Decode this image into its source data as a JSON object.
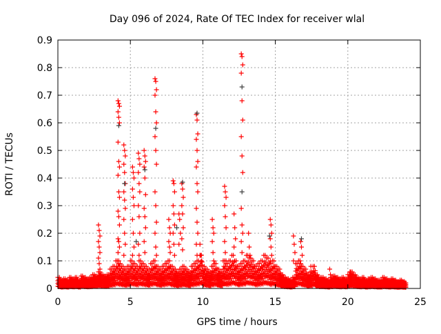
{
  "chart_data": {
    "type": "scatter",
    "title": "Day 096 of 2024, Rate Of TEC Index for receiver wlal",
    "xlabel": "GPS time / hours",
    "ylabel": "ROTI / TECUs",
    "xlim": [
      0,
      25
    ],
    "ylim": [
      0,
      0.9
    ],
    "xticks": [
      "0",
      "5",
      "10",
      "15",
      "20",
      "25"
    ],
    "yticks": [
      "0",
      "0.1",
      "0.2",
      "0.3",
      "0.4",
      "0.5",
      "0.6",
      "0.7",
      "0.8",
      "0.9"
    ],
    "grid": true,
    "marker": "+",
    "colors": {
      "primary": "#ff0000",
      "secondary": "#404040",
      "grid": "#a0a0a0"
    },
    "baseline": {
      "x_start": 0,
      "x_step": 0.2,
      "y": [
        0.04,
        0.03,
        0.035,
        0.03,
        0.04,
        0.035,
        0.04,
        0.03,
        0.045,
        0.04,
        0.035,
        0.04,
        0.05,
        0.045,
        0.06,
        0.05,
        0.045,
        0.05,
        0.07,
        0.08,
        0.1,
        0.09,
        0.08,
        0.07,
        0.08,
        0.1,
        0.09,
        0.08,
        0.1,
        0.09,
        0.08,
        0.07,
        0.09,
        0.1,
        0.08,
        0.07,
        0.08,
        0.09,
        0.1,
        0.08,
        0.07,
        0.06,
        0.07,
        0.08,
        0.07,
        0.06,
        0.08,
        0.09,
        0.1,
        0.12,
        0.08,
        0.07,
        0.06,
        0.08,
        0.09,
        0.07,
        0.06,
        0.1,
        0.09,
        0.1,
        0.12,
        0.1,
        0.08,
        0.09,
        0.1,
        0.12,
        0.11,
        0.1,
        0.08,
        0.09,
        0.1,
        0.12,
        0.11,
        0.09,
        0.1,
        0.08,
        0.07,
        0.05,
        0.04,
        0.035,
        0.03,
        0.04,
        0.09,
        0.1,
        0.08,
        0.07,
        0.05,
        0.06,
        0.08,
        0.05,
        0.04,
        0.04,
        0.035,
        0.03,
        0.04,
        0.045,
        0.04,
        0.035,
        0.04,
        0.035,
        0.05,
        0.06,
        0.05,
        0.04,
        0.035,
        0.04,
        0.03,
        0.035,
        0.04,
        0.035,
        0.03,
        0.03,
        0.04,
        0.035,
        0.03,
        0.035,
        0.03,
        0.025,
        0.03,
        0.025,
        0.02
      ]
    },
    "spikes": [
      {
        "x": 2.85,
        "y": [
          0.23,
          0.21,
          0.19,
          0.17,
          0.15,
          0.13,
          0.11,
          0.09,
          0.07
        ]
      },
      {
        "x": 4.2,
        "y": [
          0.68,
          0.67,
          0.66,
          0.64,
          0.62,
          0.6,
          0.53,
          0.46,
          0.44,
          0.41,
          0.35,
          0.33,
          0.28,
          0.26,
          0.23,
          0.18,
          0.17,
          0.15,
          0.13,
          0.1,
          0.08
        ]
      },
      {
        "x": 4.6,
        "y": [
          0.52,
          0.5,
          0.48,
          0.45,
          0.42,
          0.38,
          0.35,
          0.32,
          0.29,
          0.25,
          0.2,
          0.16,
          0.12
        ]
      },
      {
        "x": 5.2,
        "y": [
          0.44,
          0.42,
          0.4,
          0.36,
          0.33,
          0.3,
          0.25,
          0.2,
          0.15,
          0.12
        ]
      },
      {
        "x": 5.6,
        "y": [
          0.49,
          0.47,
          0.45,
          0.42,
          0.38,
          0.35,
          0.3,
          0.26,
          0.2,
          0.16,
          0.12
        ]
      },
      {
        "x": 6.0,
        "y": [
          0.5,
          0.48,
          0.46,
          0.44,
          0.4,
          0.34,
          0.29,
          0.26,
          0.22,
          0.17,
          0.13
        ]
      },
      {
        "x": 6.75,
        "y": [
          0.76,
          0.75,
          0.72,
          0.7,
          0.64,
          0.6,
          0.55,
          0.5,
          0.45,
          0.35,
          0.3,
          0.24,
          0.2,
          0.15,
          0.12
        ]
      },
      {
        "x": 7.7,
        "y": [
          0.25,
          0.22,
          0.2,
          0.17,
          0.15,
          0.13
        ]
      },
      {
        "x": 8.0,
        "y": [
          0.39,
          0.38,
          0.35,
          0.3,
          0.27,
          0.23,
          0.2,
          0.16,
          0.12
        ]
      },
      {
        "x": 8.4,
        "y": [
          0.27,
          0.25,
          0.2,
          0.16
        ]
      },
      {
        "x": 8.6,
        "y": [
          0.38,
          0.36,
          0.33,
          0.3,
          0.27,
          0.22,
          0.18,
          0.14
        ]
      },
      {
        "x": 9.6,
        "y": [
          0.63,
          0.61,
          0.56,
          0.54,
          0.5,
          0.46,
          0.44,
          0.38,
          0.35,
          0.29,
          0.24,
          0.2,
          0.16,
          0.12
        ]
      },
      {
        "x": 9.85,
        "y": [
          0.16,
          0.12,
          0.1
        ]
      },
      {
        "x": 10.7,
        "y": [
          0.25,
          0.22,
          0.2,
          0.17,
          0.13,
          0.1
        ]
      },
      {
        "x": 11.55,
        "y": [
          0.37,
          0.35,
          0.33,
          0.3,
          0.26,
          0.22,
          0.17,
          0.13,
          0.1
        ]
      },
      {
        "x": 12.2,
        "y": [
          0.27,
          0.22,
          0.18,
          0.15
        ]
      },
      {
        "x": 12.7,
        "y": [
          0.85,
          0.84,
          0.81,
          0.78,
          0.68,
          0.61,
          0.55,
          0.48,
          0.42,
          0.29,
          0.23,
          0.2,
          0.17,
          0.13
        ]
      },
      {
        "x": 13.2,
        "y": [
          0.2,
          0.15,
          0.12
        ]
      },
      {
        "x": 14.7,
        "y": [
          0.25,
          0.23,
          0.2,
          0.18,
          0.15,
          0.12,
          0.1
        ]
      },
      {
        "x": 16.3,
        "y": [
          0.19,
          0.16,
          0.13,
          0.1
        ]
      },
      {
        "x": 16.8,
        "y": [
          0.17,
          0.15,
          0.12,
          0.09
        ]
      },
      {
        "x": 17.5,
        "y": [
          0.08,
          0.06
        ]
      },
      {
        "x": 18.8,
        "y": [
          0.07,
          0.05
        ]
      },
      {
        "x": 20.2,
        "y": [
          0.06
        ]
      }
    ],
    "secondary_points": [
      [
        4.2,
        0.59
      ],
      [
        9.6,
        0.635
      ],
      [
        12.7,
        0.73
      ],
      [
        12.7,
        0.35
      ],
      [
        6.0,
        0.43
      ],
      [
        6.75,
        0.58
      ],
      [
        8.6,
        0.385
      ],
      [
        16.8,
        0.18
      ],
      [
        4.6,
        0.38
      ],
      [
        5.4,
        0.17
      ],
      [
        14.6,
        0.19
      ],
      [
        8.2,
        0.22
      ]
    ]
  }
}
